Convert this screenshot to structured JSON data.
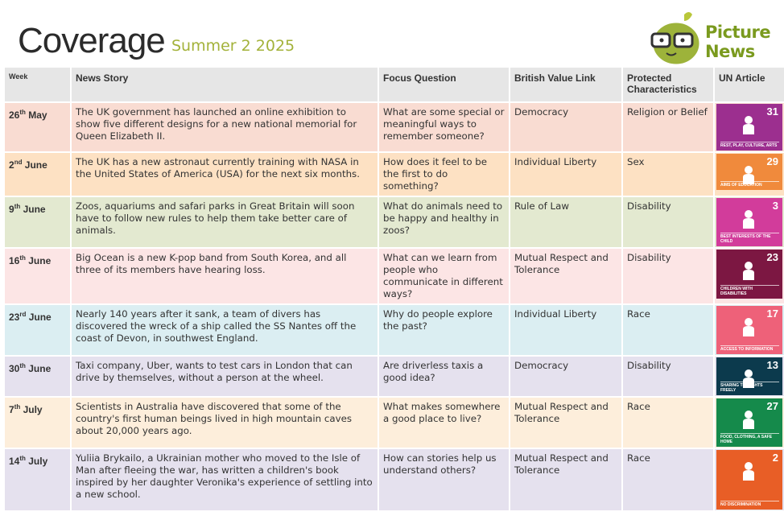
{
  "header": {
    "title": "Coverage",
    "subtitle": "Summer 2 2025",
    "logo_text": [
      "Picture",
      "News"
    ]
  },
  "columns": [
    "Week",
    "News Story",
    "Focus Question",
    "British Value Link",
    "Protected Characteristics",
    "UN Article"
  ],
  "colors": {
    "rows": [
      "#f9dcd2",
      "#fde1c3",
      "#e3e9d0",
      "#fce5e5",
      "#dbeef2",
      "#e5e1ee",
      "#fdeedb",
      "#e5e1ee"
    ]
  },
  "rows": [
    {
      "week_day": "26",
      "week_suffix": "th",
      "week_month": " May",
      "story": "The UK government has launched an online exhibition to show five different designs for a new national memorial for Queen Elizabeth II.",
      "question": "What are some special or meaningful ways to remember someone?",
      "value": "Democracy",
      "protected": "Religion or Belief",
      "un_number": "31",
      "un_label": "Rest, play, culture, arts",
      "un_color": "#9c2f8f",
      "un_icon": "music-play-icon"
    },
    {
      "week_day": "2",
      "week_suffix": "nd",
      "week_month": " June",
      "story": "The UK has a new astronaut currently training with NASA in the United States of America (USA) for the next six months.",
      "question": "How does it feel to be the first to do something?",
      "value": "Individual Liberty",
      "protected": "Sex",
      "un_number": "29",
      "un_label": "Aims of education",
      "un_color": "#f08a3c",
      "un_icon": "education-icon"
    },
    {
      "week_day": "9",
      "week_suffix": "th",
      "week_month": " June",
      "story": "Zoos, aquariums and safari parks in Great Britain will soon have to follow new rules to help them take better care of animals.",
      "question": "What do animals need to be happy and healthy in zoos?",
      "value": "Rule of Law",
      "protected": "Disability",
      "un_number": "3",
      "un_label": "Best interests of the child",
      "un_color": "#d23c9b",
      "un_icon": "adult-child-icon"
    },
    {
      "week_day": "16",
      "week_suffix": "th",
      "week_month": " June",
      "story": "Big Ocean is a new K-pop band from South Korea, and all three of its members have hearing loss.",
      "question": "What can we learn from people who communicate in different ways?",
      "value": "Mutual Respect and Tolerance",
      "protected": "Disability",
      "un_number": "23",
      "un_label": "Children with disabilities",
      "un_color": "#7c1742",
      "un_icon": "wheelchair-icon"
    },
    {
      "week_day": "23",
      "week_suffix": "rd",
      "week_month": " June",
      "story": "Nearly 140 years after it sank, a team of divers has discovered the wreck of a ship called the SS Nantes off the coast of Devon, in southwest England.",
      "question": "Why do people explore the past?",
      "value": "Individual Liberty",
      "protected": "Race",
      "un_number": "17",
      "un_label": "Access to information",
      "un_color": "#ee6179",
      "un_icon": "satellite-icon"
    },
    {
      "week_day": "30",
      "week_suffix": "th",
      "week_month": "  June",
      "story": "Taxi company, Uber, wants to test cars in London that can drive by themselves, without a person at the wheel.",
      "question": "Are driverless taxis a good idea?",
      "value": "Democracy",
      "protected": "Disability",
      "un_number": "13",
      "un_label": "Sharing thoughts freely",
      "un_color": "#0c3a4d",
      "un_icon": "megaphone-icon"
    },
    {
      "week_day": "7",
      "week_suffix": "th",
      "week_month": " July",
      "story": "Scientists in Australia have discovered that some of the country's first human beings lived in high mountain caves about 20,000 years ago.",
      "question": "What makes somewhere a good place to live?",
      "value": "Mutual Respect and Tolerance",
      "protected": "Race",
      "un_number": "27",
      "un_label": "Food, clothing, a safe home",
      "un_color": "#158a4b",
      "un_icon": "home-food-icon"
    },
    {
      "week_day": "14",
      "week_suffix": "th",
      "week_month": " July",
      "story": "Yuliia Brykailo, a Ukrainian mother who moved to the Isle of Man after fleeing the war, has written a children's book inspired by her daughter Veronika's experience of settling into a new school.",
      "question": "How can stories help us understand others?",
      "value": "Mutual Respect and Tolerance",
      "protected": "Race",
      "un_number": "2",
      "un_label": "No discrimination",
      "un_color": "#e85e26",
      "un_icon": "two-children-icon"
    }
  ]
}
